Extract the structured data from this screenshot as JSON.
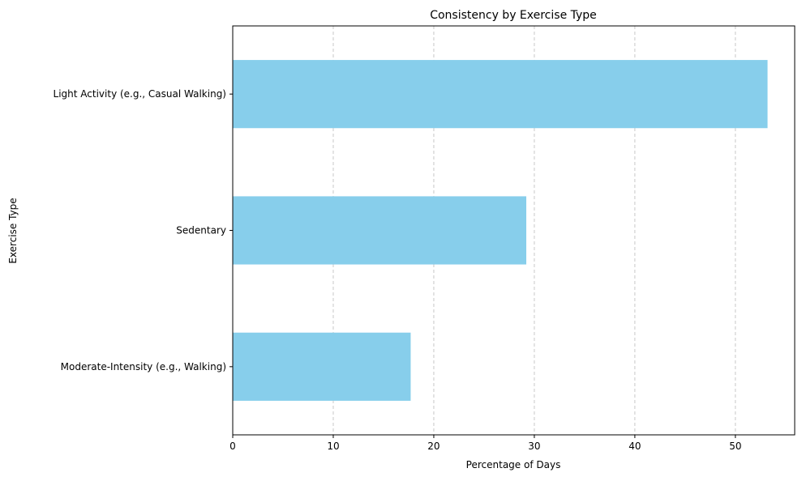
{
  "chart_data": {
    "type": "bar",
    "orientation": "horizontal",
    "title": "Consistency by Exercise Type",
    "xlabel": "Percentage of Days",
    "ylabel": "Exercise Type",
    "categories": [
      "Light Activity (e.g., Casual Walking)",
      "Sedentary",
      "Moderate-Intensity (e.g., Walking)"
    ],
    "values": [
      53.2,
      29.2,
      17.7
    ],
    "xlim": [
      0,
      55.9
    ],
    "xticks": [
      0,
      10,
      20,
      30,
      40,
      50
    ],
    "grid": "x-dashed",
    "bar_color": "#87ceeb",
    "grid_color": "#c8c8c8"
  }
}
